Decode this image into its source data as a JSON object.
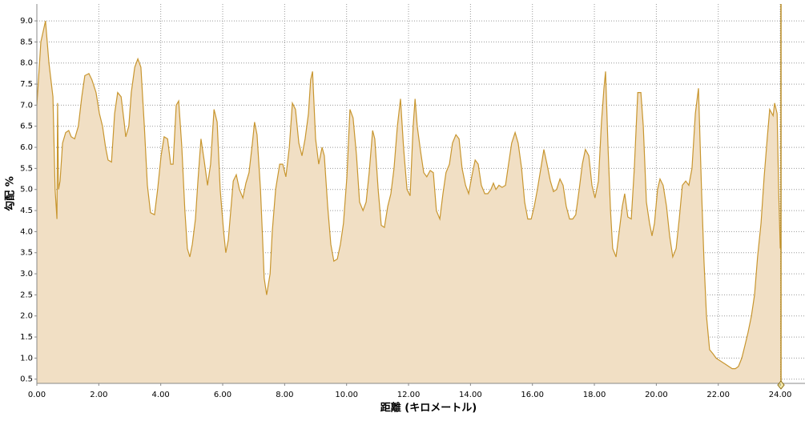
{
  "chart_data": {
    "type": "area",
    "xlabel": "距離 (キロメートル)",
    "ylabel": "勾配 %",
    "color": "#c8962f",
    "fill": "#f1dfc4",
    "grid": true,
    "xlim": [
      0,
      24.8
    ],
    "ylim": [
      0.4,
      9.4
    ],
    "xticks": [
      {
        "value": 0,
        "label": "0.00"
      },
      {
        "value": 2,
        "label": "2.00"
      },
      {
        "value": 4,
        "label": "4.00"
      },
      {
        "value": 6,
        "label": "6.00"
      },
      {
        "value": 8,
        "label": "8.00"
      },
      {
        "value": 10,
        "label": "10.00"
      },
      {
        "value": 12,
        "label": "12.00"
      },
      {
        "value": 14,
        "label": "14.00"
      },
      {
        "value": 16,
        "label": "16.00"
      },
      {
        "value": 18,
        "label": "18.00"
      },
      {
        "value": 20,
        "label": "20.00"
      },
      {
        "value": 22,
        "label": "22.00"
      },
      {
        "value": 24,
        "label": "24.00"
      }
    ],
    "yticks": [
      {
        "value": 0.5,
        "label": "0.5"
      },
      {
        "value": 1,
        "label": "1.0"
      },
      {
        "value": 1.5,
        "label": "1.5"
      },
      {
        "value": 2,
        "label": "2.0"
      },
      {
        "value": 2.5,
        "label": "2.5"
      },
      {
        "value": 3,
        "label": "3.0"
      },
      {
        "value": 3.5,
        "label": "3.5"
      },
      {
        "value": 4,
        "label": "4.0"
      },
      {
        "value": 4.5,
        "label": "4.5"
      },
      {
        "value": 5,
        "label": "5.0"
      },
      {
        "value": 5.5,
        "label": "5.5"
      },
      {
        "value": 6,
        "label": "6.0"
      },
      {
        "value": 6.5,
        "label": "6.5"
      },
      {
        "value": 7,
        "label": "7.0"
      },
      {
        "value": 7.5,
        "label": "7.5"
      },
      {
        "value": 8,
        "label": "8.0"
      },
      {
        "value": 8.5,
        "label": "8.5"
      },
      {
        "value": 9,
        "label": "9.0"
      }
    ],
    "x": [
      0,
      0.13,
      0.28,
      0.39,
      0.52,
      0.59,
      0.65,
      0.67,
      0.7,
      0.75,
      0.83,
      0.93,
      1.03,
      1.11,
      1.22,
      1.34,
      1.45,
      1.55,
      1.68,
      1.78,
      1.91,
      2.02,
      2.12,
      2.22,
      2.3,
      2.41,
      2.51,
      2.61,
      2.72,
      2.82,
      2.87,
      2.97,
      3.05,
      3.16,
      3.26,
      3.36,
      3.47,
      3.57,
      3.67,
      3.8,
      3.9,
      4.01,
      4.11,
      4.22,
      4.32,
      4.4,
      4.5,
      4.58,
      4.68,
      4.78,
      4.86,
      4.94,
      5.02,
      5.12,
      5.2,
      5.3,
      5.4,
      5.51,
      5.61,
      5.72,
      5.82,
      5.92,
      6.03,
      6.1,
      6.18,
      6.26,
      6.34,
      6.44,
      6.54,
      6.65,
      6.75,
      6.85,
      6.96,
      7.03,
      7.11,
      7.22,
      7.29,
      7.34,
      7.42,
      7.53,
      7.6,
      7.71,
      7.84,
      7.94,
      8.04,
      8.15,
      8.25,
      8.35,
      8.46,
      8.56,
      8.66,
      8.77,
      8.84,
      8.9,
      9.0,
      9.1,
      9.21,
      9.28,
      9.39,
      9.49,
      9.59,
      9.7,
      9.8,
      9.9,
      10.01,
      10.11,
      10.21,
      10.32,
      10.42,
      10.53,
      10.63,
      10.73,
      10.84,
      10.91,
      11.02,
      11.12,
      11.22,
      11.33,
      11.43,
      11.53,
      11.64,
      11.74,
      11.84,
      11.95,
      12.05,
      12.15,
      12.21,
      12.28,
      12.39,
      12.49,
      12.59,
      12.7,
      12.8,
      12.9,
      13.01,
      13.11,
      13.21,
      13.32,
      13.42,
      13.53,
      13.63,
      13.73,
      13.84,
      13.94,
      14.04,
      14.15,
      14.25,
      14.35,
      14.46,
      14.56,
      14.66,
      14.74,
      14.82,
      14.92,
      15.02,
      15.13,
      15.23,
      15.33,
      15.44,
      15.54,
      15.65,
      15.75,
      15.85,
      15.96,
      16.06,
      16.16,
      16.27,
      16.37,
      16.47,
      16.58,
      16.68,
      16.78,
      16.89,
      16.99,
      17.09,
      17.2,
      17.3,
      17.4,
      17.51,
      17.61,
      17.71,
      17.82,
      17.92,
      18.02,
      18.13,
      18.23,
      18.31,
      18.36,
      18.44,
      18.52,
      18.59,
      18.7,
      18.8,
      18.9,
      18.98,
      19.08,
      19.19,
      19.29,
      19.4,
      19.5,
      19.58,
      19.68,
      19.78,
      19.86,
      19.94,
      20.04,
      20.12,
      20.22,
      20.33,
      20.43,
      20.53,
      20.64,
      20.74,
      20.84,
      20.95,
      21.05,
      21.15,
      21.26,
      21.36,
      21.46,
      21.54,
      21.62,
      21.72,
      21.83,
      21.93,
      22.03,
      22.14,
      22.24,
      22.34,
      22.45,
      22.55,
      22.65,
      22.76,
      22.86,
      22.96,
      23.07,
      23.17,
      23.27,
      23.38,
      23.48,
      23.58,
      23.66,
      23.77,
      23.82,
      23.9,
      23.95,
      24.0
    ],
    "values": [
      7.0,
      8.5,
      9.0,
      8.0,
      7.2,
      5.0,
      4.3,
      7.05,
      5.0,
      5.2,
      6.1,
      6.35,
      6.4,
      6.25,
      6.2,
      6.5,
      7.2,
      7.7,
      7.75,
      7.6,
      7.3,
      6.8,
      6.5,
      6.0,
      5.7,
      5.65,
      6.8,
      7.3,
      7.2,
      6.6,
      6.25,
      6.5,
      7.3,
      7.9,
      8.1,
      7.9,
      6.5,
      5.1,
      4.45,
      4.4,
      5.0,
      5.8,
      6.25,
      6.2,
      5.6,
      5.6,
      7.0,
      7.1,
      6.0,
      4.5,
      3.6,
      3.4,
      3.7,
      4.3,
      5.2,
      6.2,
      5.7,
      5.1,
      5.6,
      6.9,
      6.6,
      5.0,
      4.0,
      3.5,
      3.8,
      4.5,
      5.2,
      5.35,
      5.0,
      4.8,
      5.15,
      5.4,
      6.1,
      6.6,
      6.3,
      5.0,
      3.8,
      2.9,
      2.5,
      3.0,
      4.0,
      5.0,
      5.6,
      5.6,
      5.3,
      6.0,
      7.05,
      6.9,
      6.1,
      5.8,
      6.2,
      6.8,
      7.6,
      7.8,
      6.2,
      5.6,
      6.0,
      5.8,
      4.6,
      3.7,
      3.3,
      3.35,
      3.7,
      4.2,
      5.3,
      6.9,
      6.7,
      5.8,
      4.7,
      4.5,
      4.7,
      5.4,
      6.4,
      6.2,
      5.0,
      4.15,
      4.1,
      4.6,
      4.9,
      5.5,
      6.5,
      7.15,
      6.0,
      5.0,
      4.85,
      6.5,
      7.15,
      6.5,
      5.9,
      5.4,
      5.3,
      5.45,
      5.4,
      4.5,
      4.3,
      4.9,
      5.4,
      5.6,
      6.1,
      6.3,
      6.2,
      5.5,
      5.1,
      4.9,
      5.3,
      5.7,
      5.6,
      5.1,
      4.9,
      4.9,
      5.0,
      5.15,
      5.0,
      5.1,
      5.05,
      5.1,
      5.6,
      6.1,
      6.35,
      6.1,
      5.5,
      4.7,
      4.3,
      4.3,
      4.6,
      5.0,
      5.5,
      5.95,
      5.6,
      5.2,
      4.95,
      5.0,
      5.25,
      5.1,
      4.6,
      4.3,
      4.3,
      4.4,
      5.0,
      5.6,
      5.95,
      5.8,
      5.1,
      4.8,
      5.2,
      6.6,
      7.4,
      7.8,
      6.0,
      4.5,
      3.6,
      3.4,
      4.0,
      4.6,
      4.9,
      4.35,
      4.3,
      5.5,
      7.3,
      7.3,
      6.5,
      4.7,
      4.2,
      3.9,
      4.2,
      5.0,
      5.25,
      5.1,
      4.6,
      3.9,
      3.4,
      3.6,
      4.3,
      5.1,
      5.2,
      5.1,
      5.5,
      6.8,
      7.4,
      5.0,
      3.3,
      2.0,
      1.2,
      1.1,
      1.0,
      0.95,
      0.9,
      0.85,
      0.8,
      0.75,
      0.75,
      0.8,
      1.0,
      1.3,
      1.6,
      2.0,
      2.5,
      3.4,
      4.2,
      5.3,
      6.2,
      6.9,
      6.75,
      7.05,
      6.8,
      5.0,
      3.6
    ]
  }
}
